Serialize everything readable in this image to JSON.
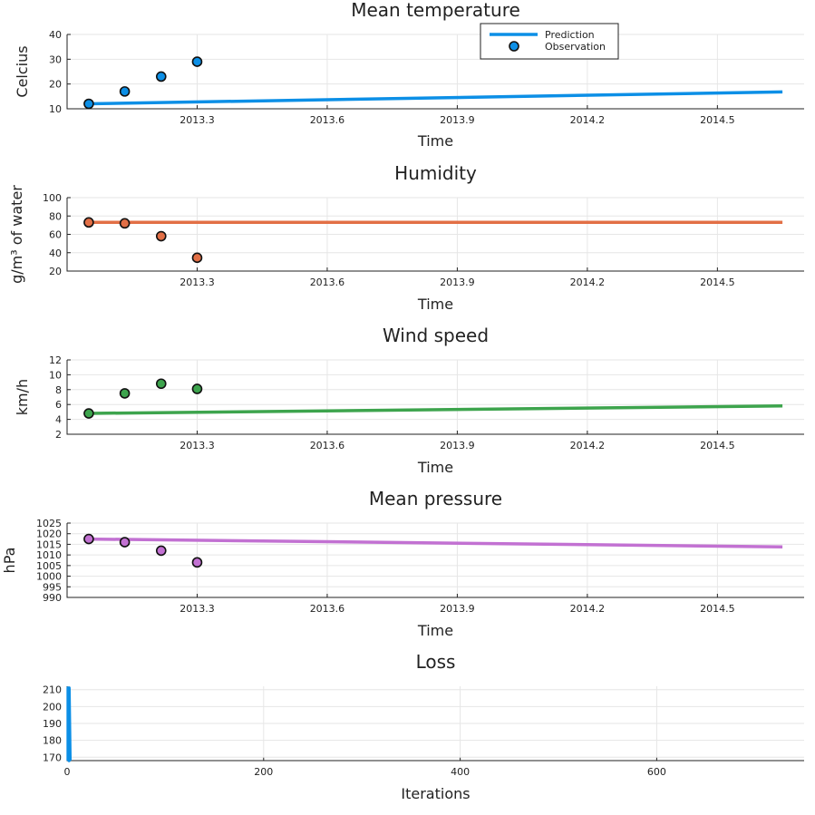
{
  "chart_data": [
    {
      "type": "line",
      "title": "Mean temperature",
      "xlabel": "Time",
      "ylabel": "Celcius",
      "xlim": [
        2013.0,
        2014.7
      ],
      "ylim": [
        10,
        40
      ],
      "xticks": [
        "2013.3",
        "2013.6",
        "2013.9",
        "2014.2",
        "2014.5"
      ],
      "yticks": [
        "10",
        "20",
        "30",
        "40"
      ],
      "color": "#0c8fe6",
      "legend": {
        "placement": "top-right",
        "entries": [
          "Prediction",
          "Observation"
        ]
      },
      "series": [
        {
          "name": "Prediction",
          "kind": "line",
          "x": [
            2013.05,
            2014.65
          ],
          "y": [
            12.0,
            16.8
          ]
        },
        {
          "name": "Observation",
          "kind": "scatter",
          "x": [
            2013.05,
            2013.133,
            2013.217,
            2013.3
          ],
          "y": [
            12.0,
            17.0,
            23.0,
            29.0
          ]
        }
      ]
    },
    {
      "type": "line",
      "title": "Humidity",
      "xlabel": "Time",
      "ylabel": "g/m³ of water",
      "xlim": [
        2013.0,
        2014.7
      ],
      "ylim": [
        20,
        100
      ],
      "xticks": [
        "2013.3",
        "2013.6",
        "2013.9",
        "2014.2",
        "2014.5"
      ],
      "yticks": [
        "20",
        "40",
        "60",
        "80",
        "100"
      ],
      "color": "#e26f46",
      "series": [
        {
          "name": "Prediction",
          "kind": "line",
          "x": [
            2013.05,
            2014.65
          ],
          "y": [
            73.0,
            73.0
          ]
        },
        {
          "name": "Observation",
          "kind": "scatter",
          "x": [
            2013.05,
            2013.133,
            2013.217,
            2013.3
          ],
          "y": [
            73.0,
            72.0,
            58.0,
            34.5
          ]
        }
      ]
    },
    {
      "type": "line",
      "title": "Wind speed",
      "xlabel": "Time",
      "ylabel": "km/h",
      "xlim": [
        2013.0,
        2014.7
      ],
      "ylim": [
        2,
        12
      ],
      "xticks": [
        "2013.3",
        "2013.6",
        "2013.9",
        "2014.2",
        "2014.5"
      ],
      "yticks": [
        "2",
        "4",
        "6",
        "8",
        "10",
        "12"
      ],
      "color": "#3da44d",
      "series": [
        {
          "name": "Prediction",
          "kind": "line",
          "x": [
            2013.05,
            2014.65
          ],
          "y": [
            4.8,
            5.8
          ]
        },
        {
          "name": "Observation",
          "kind": "scatter",
          "x": [
            2013.05,
            2013.133,
            2013.217,
            2013.3
          ],
          "y": [
            4.8,
            7.5,
            8.8,
            8.1
          ]
        }
      ]
    },
    {
      "type": "line",
      "title": "Mean pressure",
      "xlabel": "Time",
      "ylabel": "hPa",
      "xlim": [
        2013.0,
        2014.7
      ],
      "ylim": [
        990,
        1025
      ],
      "xticks": [
        "2013.3",
        "2013.6",
        "2013.9",
        "2014.2",
        "2014.5"
      ],
      "yticks": [
        "990",
        "995",
        "1000",
        "1005",
        "1010",
        "1015",
        "1020",
        "1025"
      ],
      "color": "#c271d2",
      "series": [
        {
          "name": "Prediction",
          "kind": "line",
          "x": [
            2013.05,
            2014.65
          ],
          "y": [
            1017.5,
            1013.8
          ]
        },
        {
          "name": "Observation",
          "kind": "scatter",
          "x": [
            2013.05,
            2013.133,
            2013.217,
            2013.3
          ],
          "y": [
            1017.5,
            1016.0,
            1012.0,
            1006.5
          ]
        }
      ]
    },
    {
      "type": "line",
      "title": "Loss",
      "xlabel": "Iterations",
      "ylabel": "",
      "xlim": [
        0,
        750
      ],
      "ylim": [
        168,
        212
      ],
      "xticks": [
        "0",
        "200",
        "400",
        "600"
      ],
      "yticks": [
        "170",
        "180",
        "190",
        "200",
        "210"
      ],
      "color": "#0c8fe6",
      "series": [
        {
          "name": "Loss",
          "kind": "line",
          "x": [
            1,
            1,
            2,
            2,
            3
          ],
          "y": [
            168,
            211,
            168,
            211,
            168
          ]
        }
      ]
    }
  ]
}
